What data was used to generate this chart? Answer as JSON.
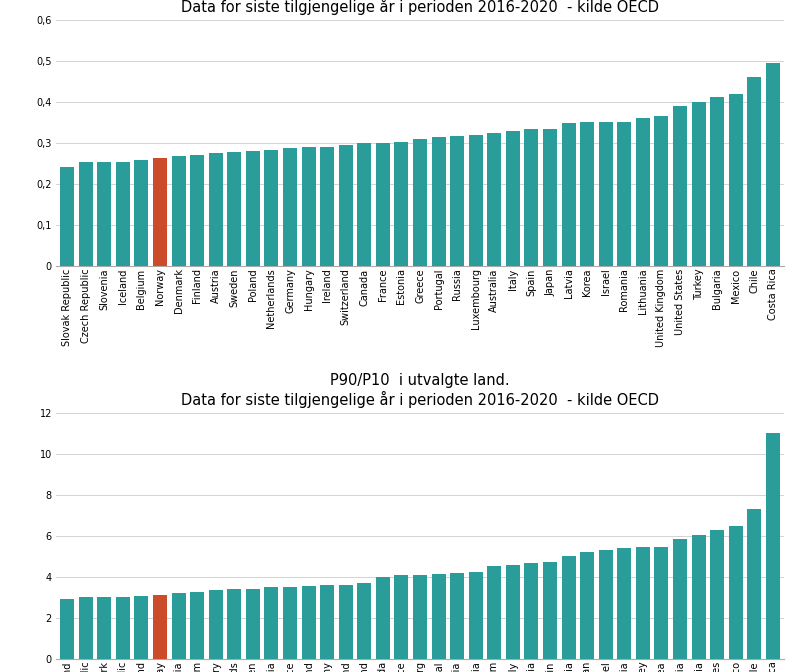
{
  "gini": {
    "title": "Gini-koeffisienten  i utvalgte land.\nData for siste tilgjengelige år i perioden 2016-2020  - kilde OECD",
    "countries": [
      "Slovak Republic",
      "Czech Republic",
      "Slovenia",
      "Iceland",
      "Belgium",
      "Norway",
      "Denmark",
      "Finland",
      "Austria",
      "Sweden",
      "Poland",
      "Netherlands",
      "Germany",
      "Hungary",
      "Ireland",
      "Switzerland",
      "Canada",
      "France",
      "Estonia",
      "Greece",
      "Portugal",
      "Russia",
      "Luxembourg",
      "Australia",
      "Italy",
      "Spain",
      "Japan",
      "Latvia",
      "Korea",
      "Israel",
      "Romania",
      "Lithuania",
      "United Kingdom",
      "United States",
      "Turkey",
      "Bulgaria",
      "Mexico",
      "Chile",
      "Costa Rica"
    ],
    "values": [
      0.24,
      0.253,
      0.253,
      0.254,
      0.259,
      0.263,
      0.267,
      0.27,
      0.275,
      0.278,
      0.28,
      0.282,
      0.287,
      0.289,
      0.291,
      0.296,
      0.3,
      0.3,
      0.303,
      0.31,
      0.315,
      0.317,
      0.32,
      0.325,
      0.33,
      0.333,
      0.334,
      0.348,
      0.35,
      0.35,
      0.352,
      0.362,
      0.366,
      0.39,
      0.4,
      0.412,
      0.42,
      0.46,
      0.495
    ],
    "highlight_country": "Norway",
    "teal_color": "#2A9D9A",
    "highlight_color": "#CC4B2A",
    "ylim": [
      0,
      0.6
    ],
    "yticks": [
      0,
      0.1,
      0.2,
      0.3,
      0.4,
      0.5,
      0.6
    ],
    "ytick_labels": [
      "0",
      "0,1",
      "0,2",
      "0,3",
      "0,4",
      "0,5",
      "0,6"
    ]
  },
  "p90p10": {
    "title": "P90/P10  i utvalgte land.\nData for siste tilgjengelige år i perioden 2016-2020  - kilde OECD",
    "countries": [
      "Iceland",
      "Czech Republic",
      "Denmark",
      "Slovak Republic",
      "Finland",
      "Norway",
      "Slovenia",
      "Belgium",
      "Hungary",
      "Netherlands",
      "Sweden",
      "Austria",
      "France",
      "Ireland",
      "Germany",
      "Poland",
      "Switzerland",
      "Canada",
      "Greece",
      "Luxembourg",
      "Portugal",
      "Australia",
      "Russia",
      "United Kingdom",
      "Italy",
      "Estonia",
      "Spain",
      "Latvia",
      "Japan",
      "Israel",
      "Lithuania",
      "Turkey",
      "Korea",
      "Bulgaria",
      "Romania",
      "United States",
      "Mexico",
      "Chile",
      "Costa Rica"
    ],
    "values": [
      2.9,
      3.0,
      3.0,
      3.0,
      3.05,
      3.1,
      3.2,
      3.25,
      3.35,
      3.4,
      3.4,
      3.5,
      3.52,
      3.55,
      3.58,
      3.6,
      3.7,
      4.0,
      4.1,
      4.1,
      4.15,
      4.2,
      4.25,
      4.5,
      4.55,
      4.65,
      4.7,
      5.0,
      5.2,
      5.3,
      5.4,
      5.45,
      5.45,
      5.85,
      6.05,
      6.3,
      6.5,
      7.3,
      11.0
    ],
    "highlight_country": "Norway",
    "teal_color": "#2A9D9A",
    "highlight_color": "#CC4B2A",
    "ylim": [
      0,
      12
    ],
    "yticks": [
      0,
      2,
      4,
      6,
      8,
      10,
      12
    ],
    "ytick_labels": [
      "0",
      "2",
      "4",
      "6",
      "8",
      "10",
      "12"
    ]
  },
  "bg_color": "#FFFFFF",
  "title_fontsize": 10.5,
  "tick_fontsize": 7.0,
  "bar_width": 0.75,
  "figsize": [
    8.0,
    6.72
  ],
  "dpi": 100
}
